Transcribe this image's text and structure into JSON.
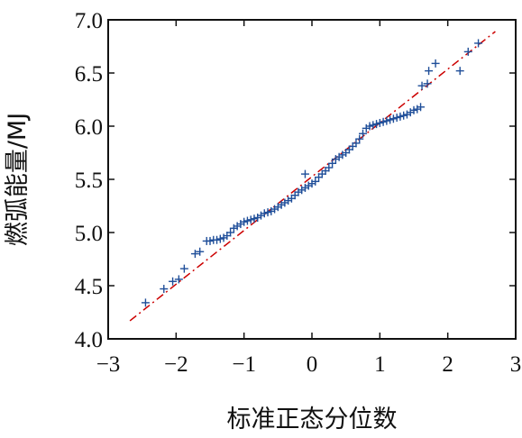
{
  "chart_data": {
    "type": "scatter",
    "title": "",
    "xlabel": "标准正态分位数",
    "ylabel": "燃弧能量/MJ",
    "xlim": [
      -3,
      3
    ],
    "ylim": [
      4.0,
      7.0
    ],
    "x_ticks": [
      "−3",
      "−2",
      "−1",
      "0",
      "1",
      "2",
      "3"
    ],
    "y_ticks": [
      "4.0",
      "4.5",
      "5.0",
      "5.5",
      "6.0",
      "6.5",
      "7.0"
    ],
    "grid": false,
    "series": [
      {
        "marker": "plus",
        "color": "#1f4e99",
        "points": [
          [
            -2.45,
            4.34
          ],
          [
            -2.18,
            4.47
          ],
          [
            -2.05,
            4.54
          ],
          [
            -1.96,
            4.56
          ],
          [
            -1.88,
            4.66
          ],
          [
            -1.72,
            4.8
          ],
          [
            -1.65,
            4.82
          ],
          [
            -1.55,
            4.92
          ],
          [
            -1.5,
            4.92
          ],
          [
            -1.45,
            4.93
          ],
          [
            -1.4,
            4.93
          ],
          [
            -1.35,
            4.94
          ],
          [
            -1.3,
            4.95
          ],
          [
            -1.25,
            4.97
          ],
          [
            -1.2,
            5.0
          ],
          [
            -1.15,
            5.04
          ],
          [
            -1.1,
            5.06
          ],
          [
            -1.05,
            5.08
          ],
          [
            -1.0,
            5.1
          ],
          [
            -0.95,
            5.11
          ],
          [
            -0.9,
            5.12
          ],
          [
            -0.85,
            5.13
          ],
          [
            -0.8,
            5.14
          ],
          [
            -0.75,
            5.16
          ],
          [
            -0.7,
            5.18
          ],
          [
            -0.65,
            5.19
          ],
          [
            -0.6,
            5.2
          ],
          [
            -0.55,
            5.22
          ],
          [
            -0.5,
            5.24
          ],
          [
            -0.45,
            5.26
          ],
          [
            -0.4,
            5.28
          ],
          [
            -0.35,
            5.3
          ],
          [
            -0.3,
            5.32
          ],
          [
            -0.25,
            5.35
          ],
          [
            -0.2,
            5.38
          ],
          [
            -0.15,
            5.4
          ],
          [
            -0.1,
            5.42
          ],
          [
            -0.05,
            5.44
          ],
          [
            0.0,
            5.46
          ],
          [
            0.05,
            5.48
          ],
          [
            0.1,
            5.52
          ],
          [
            0.15,
            5.55
          ],
          [
            0.2,
            5.58
          ],
          [
            0.25,
            5.61
          ],
          [
            0.3,
            5.65
          ],
          [
            0.35,
            5.69
          ],
          [
            0.4,
            5.71
          ],
          [
            0.45,
            5.73
          ],
          [
            0.5,
            5.75
          ],
          [
            0.55,
            5.78
          ],
          [
            0.6,
            5.81
          ],
          [
            0.65,
            5.84
          ],
          [
            0.7,
            5.88
          ],
          [
            0.75,
            5.93
          ],
          [
            0.8,
            5.98
          ],
          [
            0.85,
            6.0
          ],
          [
            0.9,
            6.01
          ],
          [
            0.95,
            6.02
          ],
          [
            1.0,
            6.03
          ],
          [
            1.05,
            6.04
          ],
          [
            1.1,
            6.05
          ],
          [
            1.15,
            6.06
          ],
          [
            1.2,
            6.07
          ],
          [
            1.25,
            6.08
          ],
          [
            1.3,
            6.09
          ],
          [
            1.35,
            6.1
          ],
          [
            1.4,
            6.11
          ],
          [
            1.45,
            6.13
          ],
          [
            1.5,
            6.15
          ],
          [
            1.55,
            6.16
          ],
          [
            1.6,
            6.18
          ],
          [
            -0.1,
            5.55
          ],
          [
            1.62,
            6.38
          ],
          [
            1.7,
            6.4
          ],
          [
            1.72,
            6.52
          ],
          [
            1.82,
            6.59
          ],
          [
            2.18,
            6.52
          ],
          [
            2.3,
            6.7
          ],
          [
            2.45,
            6.78
          ]
        ]
      },
      {
        "name": "",
        "type": "line",
        "style": "dash-dot",
        "color": "#cc0000",
        "points": [
          [
            -2.68,
            4.17
          ],
          [
            2.7,
            6.89
          ]
        ]
      }
    ]
  }
}
